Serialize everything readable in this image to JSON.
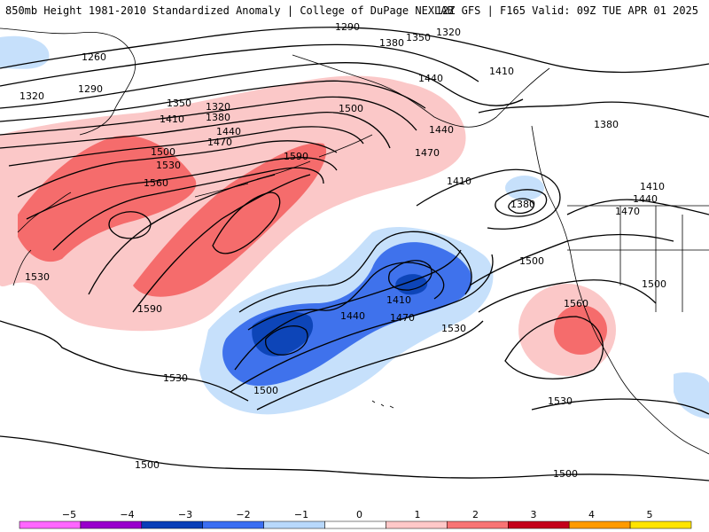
{
  "header": {
    "title_left": "850mb Height 1981-2010 Standardized Anomaly | College of DuPage NEXLAB",
    "title_right": "12Z GFS | F165 Valid: 09Z TUE APR 01 2025"
  },
  "contour_labels": [
    "1290",
    "1380",
    "1350",
    "1320",
    "1260",
    "1290",
    "1320",
    "1350",
    "1320",
    "1380",
    "1410",
    "1440",
    "1470",
    "1500",
    "1530",
    "1560",
    "1590",
    "1530",
    "1590",
    "1500",
    "1440",
    "1470",
    "1410",
    "1380",
    "1440",
    "1410",
    "1380",
    "1410",
    "1440",
    "1470",
    "1500",
    "1500",
    "1470",
    "1410",
    "1440",
    "1530",
    "1560",
    "1530",
    "1530",
    "1500",
    "1500",
    "1500"
  ],
  "colorbar": {
    "ticks": [
      "−5",
      "−4",
      "−3",
      "−2",
      "−1",
      "0",
      "1",
      "2",
      "3",
      "4",
      "5"
    ],
    "colors": [
      "#ff66ff",
      "#9900cc",
      "#0a3fb8",
      "#3b6ef2",
      "#b8d8fb",
      "#ffffff",
      "#ffc8c8",
      "#f87474",
      "#c4001a",
      "#ff9a00",
      "#ffe400"
    ]
  },
  "legend_colors": {
    "neg3": "#0d45b8",
    "neg2": "#3f72ec",
    "neg1": "#c6e0fb",
    "pos1": "#fbc8c8",
    "pos2": "#f56c6c",
    "contour": "#000000",
    "coast": "#000000"
  }
}
